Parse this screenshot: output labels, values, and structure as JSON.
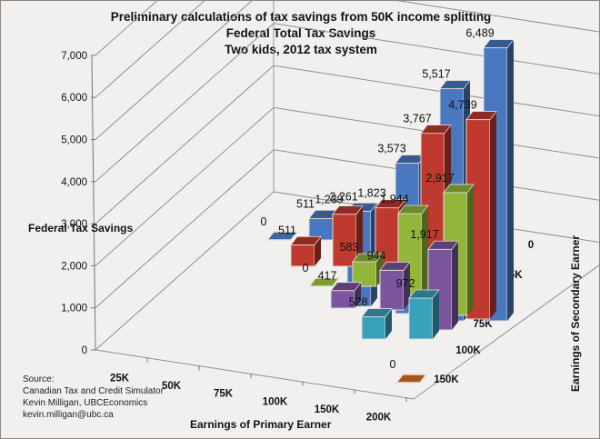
{
  "chart": {
    "title": "Preliminary  calculations of tax savings from 50K income splitting",
    "subtitle1": "Federal Total Tax Savings",
    "subtitle2": "Two kids, 2012 tax system",
    "ylabel": "Federal Tax Savings",
    "xlabel": "Earnings of Primary Earner",
    "zlabel": "Earnings of Secondary Earner",
    "source": {
      "heading": "Source:",
      "line1": "Canadian Tax and Credit Simulator",
      "line2": "Kevin Milligan, UBCEconomics",
      "line3": "kevin.milligan@ubc.ca"
    }
  },
  "chart_data": {
    "type": "bar",
    "subtype": "3d-column",
    "title": "Preliminary calculations of tax savings from 50K income splitting",
    "subtitle": [
      "Federal Total Tax Savings",
      "Two kids, 2012 tax system"
    ],
    "xlabel": "Earnings of Primary Earner",
    "ylabel": "Federal Tax Savings",
    "zlabel": "Earnings of Secondary Earner",
    "ylim": [
      0,
      7000
    ],
    "yticks": [
      0,
      1000,
      2000,
      3000,
      4000,
      5000,
      6000,
      7000
    ],
    "ytick_labels": [
      "0",
      "1,000",
      "2,000",
      "3,000",
      "4,000",
      "5,000",
      "6,000",
      "7,000"
    ],
    "categories": [
      "25K",
      "50K",
      "75K",
      "100K",
      "150K",
      "200K"
    ],
    "grid": true,
    "legend": "none",
    "series": [
      {
        "name": "0",
        "color": "#4a78c0",
        "values": [
          0,
          511,
          2261,
          3573,
          5517,
          6489
        ]
      },
      {
        "name": "25K",
        "color": "#c0392f",
        "values": [
          null,
          511,
          1239,
          1823,
          3767,
          4739
        ]
      },
      {
        "name": "50K",
        "color": "#93b63a",
        "values": [
          null,
          null,
          0,
          583,
          1944,
          2917
        ]
      },
      {
        "name": "75K",
        "color": "#7b559e",
        "values": [
          null,
          null,
          null,
          417,
          944,
          1917
        ]
      },
      {
        "name": "100K",
        "color": "#3aa1bd",
        "values": [
          null,
          null,
          null,
          null,
          528,
          972
        ]
      },
      {
        "name": "150K",
        "color": "#c8641f",
        "values": [
          null,
          null,
          null,
          null,
          null,
          0
        ]
      }
    ],
    "data_labels": [
      "0",
      "511",
      "2,261",
      "3,573",
      "5,517",
      "6,489",
      "511",
      "1,239",
      "1,823",
      "3,767",
      "4,739",
      "0",
      "583",
      "1,944",
      "2,917",
      "417",
      "944",
      "1,917",
      "528",
      "972",
      "0"
    ]
  }
}
